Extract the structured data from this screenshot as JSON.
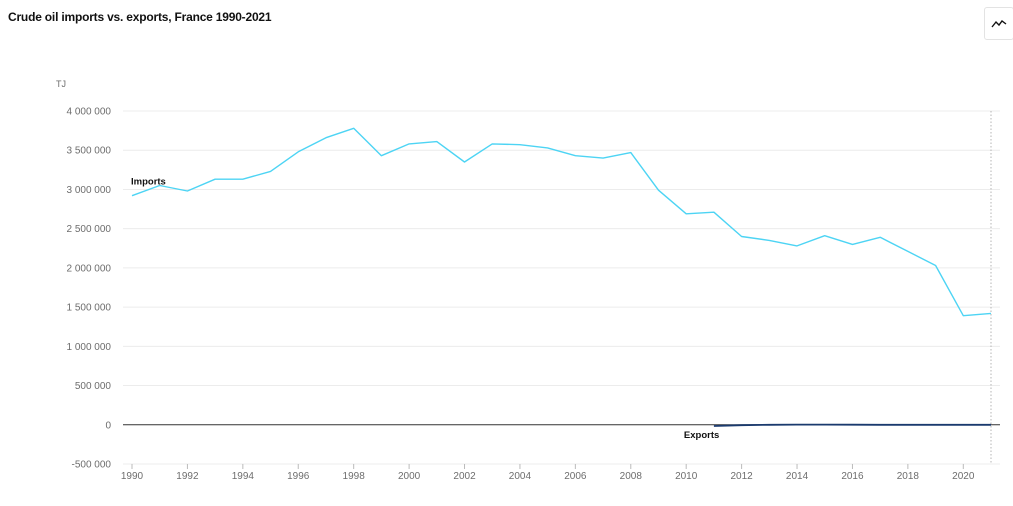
{
  "title": "Crude oil imports vs. exports, France 1990-2021",
  "chart_type_icon": "line-chart-icon",
  "chart_data": {
    "type": "line",
    "title": "Crude oil imports vs. exports, France 1990-2021",
    "ylabel": "TJ",
    "xlabel": "",
    "ylim": [
      -500000,
      4000000
    ],
    "y_ticks": [
      {
        "value": -500000,
        "label": "-500 000"
      },
      {
        "value": 0,
        "label": "0"
      },
      {
        "value": 500000,
        "label": "500 000"
      },
      {
        "value": 1000000,
        "label": "1 000 000"
      },
      {
        "value": 1500000,
        "label": "1 500 000"
      },
      {
        "value": 2000000,
        "label": "2 000 000"
      },
      {
        "value": 2500000,
        "label": "2 500 000"
      },
      {
        "value": 3000000,
        "label": "3 000 000"
      },
      {
        "value": 3500000,
        "label": "3 500 000"
      },
      {
        "value": 4000000,
        "label": "4 000 000"
      }
    ],
    "x_ticks": [
      "1990",
      "1992",
      "1994",
      "1996",
      "1998",
      "2000",
      "2002",
      "2004",
      "2006",
      "2008",
      "2010",
      "2012",
      "2014",
      "2016",
      "2018",
      "2020"
    ],
    "x": [
      1990,
      1991,
      1992,
      1993,
      1994,
      1995,
      1996,
      1997,
      1998,
      1999,
      2000,
      2001,
      2002,
      2003,
      2004,
      2005,
      2006,
      2007,
      2008,
      2009,
      2010,
      2011,
      2012,
      2013,
      2014,
      2015,
      2016,
      2017,
      2018,
      2019,
      2020,
      2021
    ],
    "grid": true,
    "series": [
      {
        "name": "Imports",
        "color": "#4dd4f4",
        "values": [
          2920000,
          3050000,
          2980000,
          3130000,
          3130000,
          3230000,
          3480000,
          3660000,
          3780000,
          3430000,
          3580000,
          3610000,
          3350000,
          3580000,
          3570000,
          3530000,
          3430000,
          3400000,
          3470000,
          2990000,
          2690000,
          2710000,
          2400000,
          2350000,
          2280000,
          2410000,
          2300000,
          2390000,
          2210000,
          2030000,
          1390000,
          1420000
        ]
      },
      {
        "name": "Exports",
        "color": "#1a3a6e",
        "values": [
          null,
          null,
          null,
          null,
          null,
          null,
          null,
          null,
          null,
          null,
          null,
          null,
          null,
          null,
          null,
          null,
          null,
          null,
          null,
          null,
          null,
          -15000,
          -5000,
          0,
          2000,
          2000,
          1000,
          0,
          0,
          0,
          0,
          0
        ]
      }
    ],
    "zero_line_color": "#333333",
    "marker_year": 2021
  }
}
